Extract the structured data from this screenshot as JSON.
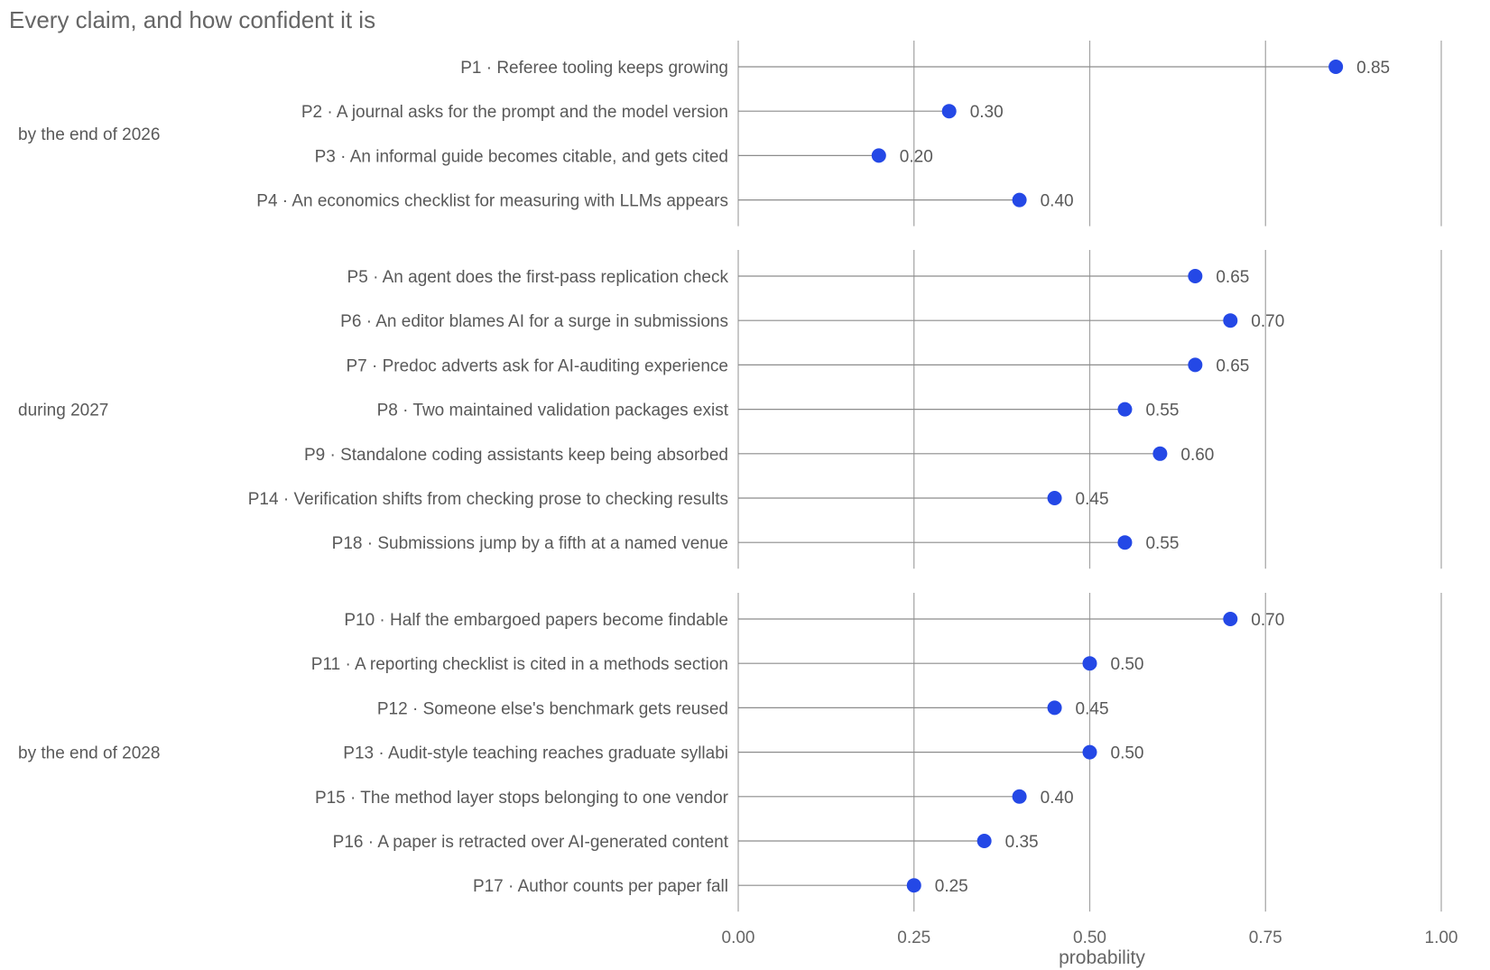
{
  "chart_data": {
    "type": "dot",
    "title": "Every claim, and how confident it is",
    "xlabel": "probability",
    "xlim": [
      0,
      1
    ],
    "x_ticks": [
      "0.00",
      "0.25",
      "0.50",
      "0.75",
      "1.00"
    ],
    "x_tick_values": [
      0,
      0.25,
      0.5,
      0.75,
      1.0
    ],
    "grid": true,
    "point_color": "#2448e6",
    "groups": [
      {
        "name": "by the end of 2026",
        "items": [
          {
            "label": "P1 · Referee tooling keeps growing",
            "value": 0.85,
            "value_label": "0.85"
          },
          {
            "label": "P2 · A journal asks for the prompt and the model version",
            "value": 0.3,
            "value_label": "0.30"
          },
          {
            "label": "P3 · An informal guide becomes citable, and gets cited",
            "value": 0.2,
            "value_label": "0.20"
          },
          {
            "label": "P4 · An economics checklist for measuring with LLMs appears",
            "value": 0.4,
            "value_label": "0.40"
          }
        ]
      },
      {
        "name": "during 2027",
        "items": [
          {
            "label": "P5 · An agent does the first-pass replication check",
            "value": 0.65,
            "value_label": "0.65"
          },
          {
            "label": "P6 · An editor blames AI for a surge in submissions",
            "value": 0.7,
            "value_label": "0.70"
          },
          {
            "label": "P7 · Predoc adverts ask for AI-auditing experience",
            "value": 0.65,
            "value_label": "0.65"
          },
          {
            "label": "P8 · Two maintained validation packages exist",
            "value": 0.55,
            "value_label": "0.55"
          },
          {
            "label": "P9 · Standalone coding assistants keep being absorbed",
            "value": 0.6,
            "value_label": "0.60"
          },
          {
            "label": "P14 · Verification shifts from checking prose to checking results",
            "value": 0.45,
            "value_label": "0.45"
          },
          {
            "label": "P18 · Submissions jump by a fifth at a named venue",
            "value": 0.55,
            "value_label": "0.55"
          }
        ]
      },
      {
        "name": "by the end of 2028",
        "items": [
          {
            "label": "P10 · Half the embargoed papers become findable",
            "value": 0.7,
            "value_label": "0.70"
          },
          {
            "label": "P11 · A reporting checklist is cited in a methods section",
            "value": 0.5,
            "value_label": "0.50"
          },
          {
            "label": "P12 · Someone else's benchmark gets reused",
            "value": 0.45,
            "value_label": "0.45"
          },
          {
            "label": "P13 · Audit-style teaching reaches graduate syllabi",
            "value": 0.5,
            "value_label": "0.50"
          },
          {
            "label": "P15 · The method layer stops belonging to one vendor",
            "value": 0.4,
            "value_label": "0.40"
          },
          {
            "label": "P16 · A paper is retracted over AI-generated content",
            "value": 0.35,
            "value_label": "0.35"
          },
          {
            "label": "P17 · Author counts per paper fall",
            "value": 0.25,
            "value_label": "0.25"
          }
        ]
      }
    ]
  }
}
